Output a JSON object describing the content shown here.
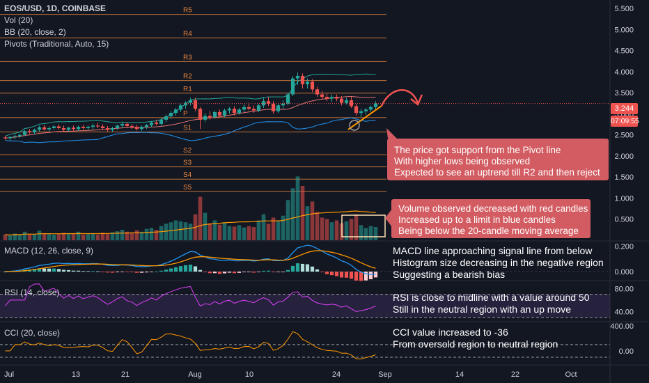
{
  "legend": {
    "symbol": "EOS/USD, 1D, COINBASE",
    "vol": "Vol (20)",
    "bb": "BB (20, close, 2)",
    "pivots": "Pivots (Traditional, Auto, 15)"
  },
  "indicators": {
    "macd": "MACD (12, 26, close, 9)",
    "rsi": "RSI (14, close)",
    "cci": "CCI (20, close)"
  },
  "price_tag": {
    "value": "3.244",
    "color": "#ef5350"
  },
  "time_tag": {
    "value": "07:09:55",
    "color": "#ef5350"
  },
  "annotations": {
    "pivot": [
      "The price got support from the Pivot line",
      "With higher lows being observed",
      "Expected to see an uptrend till R2 and then reject"
    ],
    "volume": [
      "Volume observed decreased with red candles",
      "Increased up to a limit in blue candles",
      "Being below the 20-candle moving average"
    ],
    "macd": [
      "MACD line approaching signal line from below",
      "Histogram size decreasing in the negative region",
      "Suggesting a bearish bias"
    ],
    "rsi": [
      "RSI is close to midline with a value around 50",
      "Still in the neutral region with an up move"
    ],
    "cci": [
      "CCI value increased to -36",
      "From oversold region to neutral region"
    ]
  },
  "colors": {
    "up": "#26a69a",
    "down": "#ef5350",
    "pivot": "#e8843d",
    "annotation_bg": "#d25c62",
    "background": "#131722"
  },
  "chart_data": {
    "type": "candlestick",
    "title": "EOS/USD, 1D, COINBASE",
    "x_ticks": [
      "Jul",
      "13",
      "21",
      "Aug",
      "10",
      "24",
      "Sep",
      "14",
      "22",
      "Oct"
    ],
    "y_ticks": [
      "5.500",
      "5.000",
      "4.500",
      "4.000",
      "3.500",
      "3.000",
      "2.500",
      "2.000",
      "1.500",
      "1.000",
      "0.500"
    ],
    "ylim": [
      0.0,
      5.7
    ],
    "pivot_levels": [
      {
        "name": "R5",
        "value": 5.36
      },
      {
        "name": "R4",
        "value": 4.8
      },
      {
        "name": "R3",
        "value": 4.24
      },
      {
        "name": "R2",
        "value": 3.79
      },
      {
        "name": "R1",
        "value": 3.49
      },
      {
        "name": "P",
        "value": 2.91
      },
      {
        "name": "S1",
        "value": 2.57
      },
      {
        "name": "S2",
        "value": 2.03
      },
      {
        "name": "S3",
        "value": 1.74
      },
      {
        "name": "S4",
        "value": 1.45
      },
      {
        "name": "S5",
        "value": 1.16
      }
    ],
    "candles": [
      [
        2.44,
        2.48,
        2.38,
        2.42
      ],
      [
        2.42,
        2.47,
        2.36,
        2.45
      ],
      [
        2.45,
        2.52,
        2.4,
        2.47
      ],
      [
        2.47,
        2.53,
        2.43,
        2.5
      ],
      [
        2.5,
        2.62,
        2.47,
        2.59
      ],
      [
        2.59,
        2.64,
        2.52,
        2.56
      ],
      [
        2.56,
        2.65,
        2.51,
        2.62
      ],
      [
        2.62,
        2.72,
        2.58,
        2.68
      ],
      [
        2.68,
        2.74,
        2.6,
        2.63
      ],
      [
        2.63,
        2.7,
        2.58,
        2.66
      ],
      [
        2.66,
        2.73,
        2.62,
        2.7
      ],
      [
        2.7,
        2.75,
        2.63,
        2.66
      ],
      [
        2.66,
        2.72,
        2.59,
        2.62
      ],
      [
        2.62,
        2.69,
        2.57,
        2.67
      ],
      [
        2.67,
        2.72,
        2.6,
        2.64
      ],
      [
        2.64,
        2.72,
        2.59,
        2.69
      ],
      [
        2.69,
        2.74,
        2.63,
        2.66
      ],
      [
        2.66,
        2.72,
        2.61,
        2.69
      ],
      [
        2.69,
        2.77,
        2.64,
        2.72
      ],
      [
        2.72,
        2.79,
        2.66,
        2.7
      ],
      [
        2.7,
        2.75,
        2.62,
        2.66
      ],
      [
        2.66,
        2.71,
        2.58,
        2.62
      ],
      [
        2.62,
        2.69,
        2.57,
        2.66
      ],
      [
        2.66,
        2.74,
        2.62,
        2.72
      ],
      [
        2.72,
        2.8,
        2.66,
        2.76
      ],
      [
        2.76,
        2.8,
        2.68,
        2.71
      ],
      [
        2.71,
        2.76,
        2.64,
        2.69
      ],
      [
        2.69,
        2.74,
        2.6,
        2.64
      ],
      [
        2.64,
        2.72,
        2.6,
        2.69
      ],
      [
        2.69,
        2.76,
        2.64,
        2.73
      ],
      [
        2.73,
        2.82,
        2.68,
        2.79
      ],
      [
        2.79,
        2.86,
        2.72,
        2.76
      ],
      [
        2.76,
        2.9,
        2.72,
        2.86
      ],
      [
        2.86,
        2.98,
        2.8,
        2.94
      ],
      [
        2.94,
        3.06,
        2.88,
        3.02
      ],
      [
        3.02,
        3.14,
        2.96,
        3.1
      ],
      [
        3.1,
        3.24,
        3.04,
        3.2
      ],
      [
        3.2,
        3.3,
        3.12,
        3.26
      ],
      [
        3.26,
        3.38,
        3.2,
        3.32
      ],
      [
        3.32,
        3.38,
        3.06,
        3.12
      ],
      [
        3.12,
        3.16,
        2.64,
        2.86
      ],
      [
        2.86,
        3.02,
        2.8,
        2.95
      ],
      [
        2.95,
        3.06,
        2.86,
        2.92
      ],
      [
        2.92,
        3.08,
        2.88,
        3.04
      ],
      [
        3.04,
        3.1,
        2.9,
        2.96
      ],
      [
        2.96,
        3.12,
        2.92,
        3.08
      ],
      [
        3.08,
        3.16,
        3.0,
        3.12
      ],
      [
        3.12,
        3.18,
        2.96,
        3.02
      ],
      [
        3.02,
        3.14,
        2.98,
        3.1
      ],
      [
        3.1,
        3.22,
        3.04,
        3.16
      ],
      [
        3.16,
        3.26,
        3.08,
        3.12
      ],
      [
        3.12,
        3.2,
        3.02,
        3.08
      ],
      [
        3.08,
        3.24,
        3.04,
        3.2
      ],
      [
        3.2,
        3.38,
        3.14,
        3.3
      ],
      [
        3.3,
        3.4,
        3.18,
        3.24
      ],
      [
        3.24,
        3.3,
        3.0,
        3.06
      ],
      [
        3.06,
        3.24,
        3.02,
        3.2
      ],
      [
        3.2,
        3.32,
        3.12,
        3.24
      ],
      [
        3.24,
        3.5,
        3.2,
        3.46
      ],
      [
        3.46,
        3.9,
        3.42,
        3.84
      ],
      [
        3.84,
        3.98,
        3.68,
        3.9
      ],
      [
        3.9,
        3.96,
        3.6,
        3.7
      ],
      [
        3.7,
        3.84,
        3.6,
        3.76
      ],
      [
        3.76,
        3.82,
        3.52,
        3.58
      ],
      [
        3.58,
        3.64,
        3.4,
        3.46
      ],
      [
        3.46,
        3.54,
        3.34,
        3.4
      ],
      [
        3.4,
        3.48,
        3.3,
        3.36
      ],
      [
        3.36,
        3.46,
        3.28,
        3.4
      ],
      [
        3.4,
        3.46,
        3.3,
        3.36
      ],
      [
        3.36,
        3.42,
        3.2,
        3.26
      ],
      [
        3.26,
        3.38,
        3.22,
        3.32
      ],
      [
        3.32,
        3.4,
        3.14,
        3.18
      ],
      [
        3.18,
        3.24,
        2.96,
        3.02
      ],
      [
        3.02,
        3.12,
        2.92,
        3.06
      ],
      [
        3.06,
        3.14,
        2.98,
        3.1
      ],
      [
        3.1,
        3.2,
        3.04,
        3.16
      ],
      [
        3.16,
        3.3,
        3.08,
        3.244
      ]
    ],
    "volume": [
      0.12,
      0.1,
      0.14,
      0.11,
      0.18,
      0.13,
      0.12,
      0.2,
      0.15,
      0.13,
      0.12,
      0.14,
      0.16,
      0.15,
      0.14,
      0.18,
      0.12,
      0.13,
      0.15,
      0.12,
      0.16,
      0.14,
      0.17,
      0.19,
      0.22,
      0.18,
      0.16,
      0.21,
      0.18,
      0.24,
      0.26,
      0.22,
      0.3,
      0.35,
      0.38,
      0.42,
      0.4,
      0.38,
      0.35,
      0.55,
      0.92,
      0.58,
      0.36,
      0.42,
      0.33,
      0.38,
      0.3,
      0.29,
      0.32,
      0.27,
      0.3,
      0.28,
      0.42,
      0.55,
      0.35,
      0.48,
      0.4,
      0.52,
      0.85,
      1.1,
      1.35,
      1.15,
      0.72,
      0.82,
      0.6,
      0.48,
      0.45,
      0.38,
      0.42,
      0.36,
      0.4,
      0.45,
      0.55,
      0.32,
      0.26,
      0.3,
      0.28
    ],
    "volume_ma_label": "20-candle moving average",
    "macd": {
      "yticks": [
        "0.200",
        "0.000"
      ],
      "ylim": [
        -0.06,
        0.23
      ],
      "macd_line_end": -0.01,
      "signal_line_end": 0.0
    },
    "rsi": {
      "yticks": [
        "80.00",
        "40.00"
      ],
      "bands": [
        70,
        30
      ],
      "ylim": [
        25,
        90
      ],
      "last_value": 50
    },
    "cci": {
      "yticks": [
        "400.00",
        "0.00"
      ],
      "ylim": [
        -200,
        420
      ],
      "bands": [
        100,
        -100
      ],
      "last_value": -36
    }
  }
}
